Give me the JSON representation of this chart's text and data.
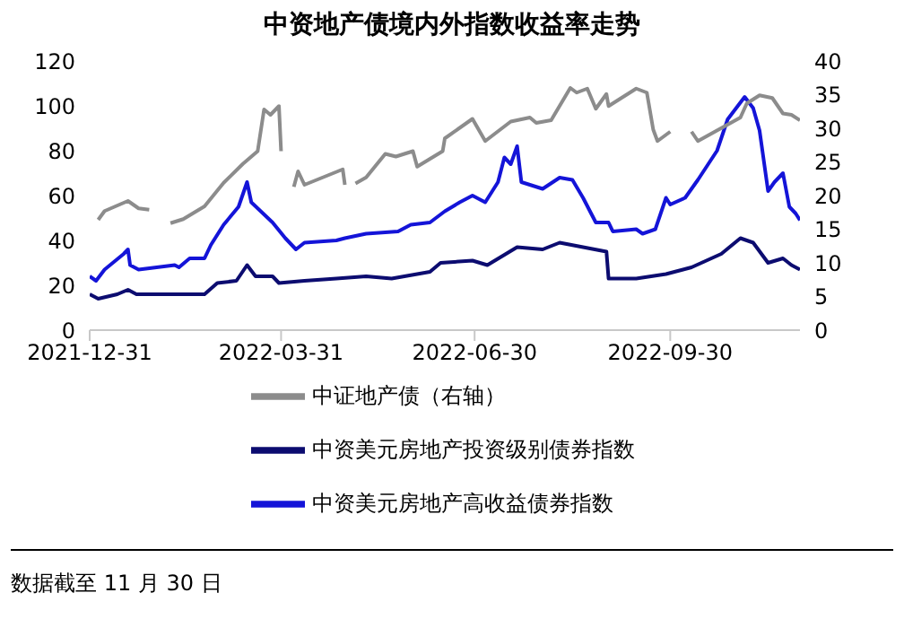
{
  "chart_data": {
    "type": "line",
    "title": "中资地产债境内外指数收益率走势",
    "marker": "none",
    "legend": "bottom",
    "xlim": [
      "2021-12-31",
      "2022-11-30"
    ],
    "xticks": [
      "2021-12-31",
      "2022-03-31",
      "2022-06-30",
      "2022-09-30"
    ],
    "ylim": [
      0,
      120
    ],
    "yticks": [
      0,
      20,
      40,
      60,
      80,
      100,
      120
    ],
    "y2lim": [
      0,
      40
    ],
    "y2ticks": [
      0,
      5,
      10,
      15,
      20,
      25,
      30,
      35,
      40
    ],
    "annotations": [
      "数据截至 11 月 30 日"
    ],
    "series": [
      {
        "name": "中资美元房地产高收益债券指数",
        "color": "#1414d8",
        "x": [
          "2021-12-31",
          "2022-01-03",
          "2022-01-07",
          "2022-01-16",
          "2022-01-18",
          "2022-01-19",
          "2022-01-23",
          "2022-02-09",
          "2022-02-11",
          "2022-02-16",
          "2022-02-23",
          "2022-02-26",
          "2022-03-04",
          "2022-03-11",
          "2022-03-15",
          "2022-03-17",
          "2022-03-27",
          "2022-04-02",
          "2022-04-07",
          "2022-04-11",
          "2022-04-26",
          "2022-04-30",
          "2022-05-10",
          "2022-05-25",
          "2022-05-31",
          "2022-06-09",
          "2022-06-16",
          "2022-06-23",
          "2022-06-29",
          "2022-07-05",
          "2022-07-11",
          "2022-07-14",
          "2022-07-17",
          "2022-07-20",
          "2022-07-22",
          "2022-08-01",
          "2022-08-09",
          "2022-08-15",
          "2022-08-20",
          "2022-08-26",
          "2022-09-01",
          "2022-09-03",
          "2022-09-14",
          "2022-09-17",
          "2022-09-23",
          "2022-09-28",
          "2022-09-30",
          "2022-10-07",
          "2022-10-13",
          "2022-10-22",
          "2022-10-27",
          "2022-11-04",
          "2022-11-08",
          "2022-11-11",
          "2022-11-15",
          "2022-11-18",
          "2022-11-22",
          "2022-11-25",
          "2022-11-28",
          "2022-11-30"
        ],
        "values": [
          24,
          22,
          27,
          34,
          36,
          29,
          27,
          29,
          28,
          32,
          32,
          38,
          47,
          55,
          66,
          57,
          48,
          41,
          36,
          39,
          40,
          41,
          43,
          44,
          47,
          48,
          53,
          57,
          60,
          57,
          66,
          77,
          74,
          82,
          66,
          63,
          68,
          67,
          59,
          48,
          48,
          44,
          45,
          43,
          45,
          59,
          56,
          59,
          67,
          80,
          94,
          104,
          99,
          89,
          62,
          66,
          70,
          55,
          52,
          49
        ]
      },
      {
        "name": "中资美元房地产投资级别债券指数",
        "color": "#0c0c70",
        "x": [
          "2021-12-31",
          "2022-01-04",
          "2022-01-13",
          "2022-01-18",
          "2022-01-22",
          "2022-02-23",
          "2022-03-01",
          "2022-03-10",
          "2022-03-15",
          "2022-03-19",
          "2022-03-27",
          "2022-03-30",
          "2022-04-11",
          "2022-04-26",
          "2022-05-10",
          "2022-05-22",
          "2022-06-09",
          "2022-06-14",
          "2022-06-29",
          "2022-07-06",
          "2022-07-20",
          "2022-08-01",
          "2022-08-09",
          "2022-08-20",
          "2022-08-31",
          "2022-09-01",
          "2022-09-14",
          "2022-09-28",
          "2022-10-10",
          "2022-10-24",
          "2022-11-02",
          "2022-11-08",
          "2022-11-15",
          "2022-11-22",
          "2022-11-26",
          "2022-11-30"
        ],
        "values": [
          16,
          14,
          16,
          18,
          16,
          16,
          21,
          22,
          29,
          24,
          24,
          21,
          22,
          23,
          24,
          23,
          26,
          30,
          31,
          29,
          37,
          36,
          39,
          37,
          35,
          23,
          23,
          25,
          28,
          34,
          41,
          39,
          30,
          32,
          29,
          27
        ]
      },
      {
        "name": "中证地产债（右轴）",
        "color": "#8c8c8c",
        "axis": "y2",
        "x": [
          "2022-01-04",
          "2022-01-07",
          "2022-01-18",
          "2022-01-23",
          "2022-01-28",
          "2022-02-02",
          "2022-02-07",
          "2022-02-13",
          "2022-02-23",
          "2022-03-04",
          "2022-03-13",
          "2022-03-20",
          "2022-03-23",
          "2022-03-26",
          "2022-03-30",
          "2022-03-31",
          "2022-04-02",
          "2022-04-06",
          "2022-04-08",
          "2022-04-11",
          "2022-04-29",
          "2022-04-30",
          "2022-05-02",
          "2022-05-05",
          "2022-05-10",
          "2022-05-19",
          "2022-05-24",
          "2022-06-01",
          "2022-06-03",
          "2022-06-15",
          "2022-06-16",
          "2022-06-29",
          "2022-07-05",
          "2022-07-17",
          "2022-07-26",
          "2022-07-29",
          "2022-08-05",
          "2022-08-14",
          "2022-08-17",
          "2022-08-22",
          "2022-08-26",
          "2022-08-31",
          "2022-09-01",
          "2022-09-14",
          "2022-09-19",
          "2022-09-22",
          "2022-09-24",
          "2022-09-30",
          "2022-10-05",
          "2022-10-10",
          "2022-10-13",
          "2022-11-02",
          "2022-11-05",
          "2022-11-11",
          "2022-11-17",
          "2022-11-22",
          "2022-11-26",
          "2022-11-30"
        ],
        "values": [
          16.4,
          17.7,
          19.2,
          18.1,
          17.9,
          null,
          15.9,
          16.5,
          18.4,
          21.9,
          24.7,
          26.6,
          32.8,
          32,
          33.3,
          26.6,
          null,
          21.3,
          23.6,
          21.6,
          23.9,
          21.6,
          null,
          21.8,
          22.7,
          26.2,
          25.8,
          26.6,
          24.3,
          26.6,
          28.5,
          31.4,
          28.1,
          31,
          31.6,
          30.8,
          31.2,
          36,
          35.3,
          35.9,
          32.9,
          35.1,
          33.3,
          35.9,
          35.3,
          29.8,
          28.1,
          29.5,
          null,
          29.5,
          28.1,
          31.6,
          33.7,
          34.9,
          34.5,
          32.2,
          32,
          31.2
        ]
      }
    ]
  }
}
